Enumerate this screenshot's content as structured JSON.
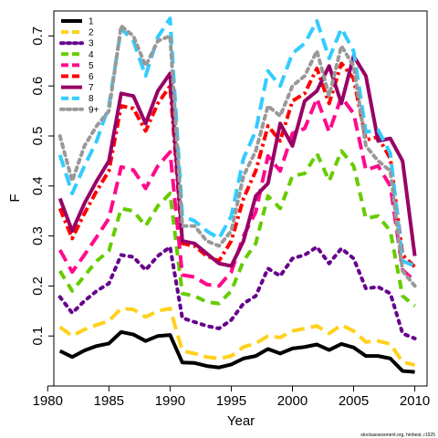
{
  "chart_data": {
    "type": "line",
    "xlabel": "Year",
    "ylabel": "F",
    "xlim": [
      1980.5,
      2011
    ],
    "ylim": [
      0.0,
      0.75
    ],
    "xticks": [
      1980,
      1985,
      1990,
      1995,
      2000,
      2005,
      2010
    ],
    "yticks": [
      0.1,
      0.2,
      0.3,
      0.4,
      0.5,
      0.6,
      0.7
    ],
    "legend_position": "top-left",
    "grid": false,
    "credit": "stockassessment.org, hmbest, r1525",
    "x": [
      1981,
      1982,
      1983,
      1984,
      1985,
      1986,
      1987,
      1988,
      1989,
      1990,
      1991,
      1992,
      1993,
      1994,
      1995,
      1996,
      1997,
      1998,
      1999,
      2000,
      2001,
      2002,
      2003,
      2004,
      2005,
      2006,
      2007,
      2008,
      2009,
      2010
    ],
    "series": [
      {
        "name": "1",
        "color": "#000000",
        "dash": "solid",
        "values": [
          0.07,
          0.058,
          0.071,
          0.08,
          0.085,
          0.108,
          0.103,
          0.09,
          0.1,
          0.102,
          0.047,
          0.046,
          0.04,
          0.037,
          0.043,
          0.055,
          0.06,
          0.074,
          0.065,
          0.075,
          0.078,
          0.083,
          0.072,
          0.084,
          0.077,
          0.06,
          0.06,
          0.055,
          0.03,
          0.028
        ]
      },
      {
        "name": "2",
        "color": "#FFD11C",
        "dash": "long",
        "values": [
          0.118,
          0.1,
          0.113,
          0.122,
          0.13,
          0.155,
          0.153,
          0.138,
          0.15,
          0.155,
          0.07,
          0.065,
          0.058,
          0.055,
          0.06,
          0.078,
          0.085,
          0.1,
          0.097,
          0.11,
          0.115,
          0.12,
          0.105,
          0.122,
          0.11,
          0.088,
          0.09,
          0.084,
          0.048,
          0.042
        ]
      },
      {
        "name": "3",
        "color": "#66008C",
        "dash": "dot",
        "values": [
          0.178,
          0.146,
          0.17,
          0.19,
          0.205,
          0.262,
          0.258,
          0.232,
          0.26,
          0.278,
          0.136,
          0.128,
          0.12,
          0.115,
          0.132,
          0.165,
          0.18,
          0.235,
          0.22,
          0.255,
          0.262,
          0.278,
          0.245,
          0.275,
          0.255,
          0.195,
          0.198,
          0.185,
          0.105,
          0.095
        ]
      },
      {
        "name": "4",
        "color": "#66CC00",
        "dash": "medium",
        "values": [
          0.23,
          0.19,
          0.22,
          0.25,
          0.27,
          0.355,
          0.35,
          0.32,
          0.36,
          0.385,
          0.185,
          0.18,
          0.168,
          0.165,
          0.19,
          0.25,
          0.285,
          0.38,
          0.355,
          0.42,
          0.425,
          0.465,
          0.41,
          0.47,
          0.44,
          0.335,
          0.34,
          0.31,
          0.18,
          0.16
        ]
      },
      {
        "name": "5",
        "color": "#FF0A8C",
        "dash": "long",
        "values": [
          0.272,
          0.228,
          0.262,
          0.298,
          0.335,
          0.438,
          0.432,
          0.395,
          0.44,
          0.468,
          0.222,
          0.218,
          0.203,
          0.2,
          0.228,
          0.3,
          0.348,
          0.46,
          0.43,
          0.505,
          0.515,
          0.575,
          0.508,
          0.578,
          0.545,
          0.432,
          0.44,
          0.4,
          0.232,
          0.21
        ]
      },
      {
        "name": "6",
        "color": "#FF0000",
        "dash": "dash-dot",
        "values": [
          0.355,
          0.295,
          0.345,
          0.39,
          0.43,
          0.56,
          0.555,
          0.51,
          0.565,
          0.6,
          0.285,
          0.28,
          0.26,
          0.25,
          0.29,
          0.375,
          0.43,
          0.52,
          0.49,
          0.57,
          0.585,
          0.635,
          0.565,
          0.645,
          0.615,
          0.492,
          0.498,
          0.455,
          0.262,
          0.238
        ]
      },
      {
        "name": "7",
        "color": "#990066",
        "dash": "solid",
        "values": [
          0.375,
          0.31,
          0.365,
          0.41,
          0.45,
          0.585,
          0.58,
          0.525,
          0.59,
          0.625,
          0.29,
          0.285,
          0.265,
          0.245,
          0.24,
          0.29,
          0.38,
          0.405,
          0.525,
          0.48,
          0.57,
          0.59,
          0.64,
          0.565,
          0.66,
          0.62,
          0.49,
          0.495,
          0.45,
          0.26
        ]
      },
      {
        "name": "8",
        "color": "#33CCFF",
        "dash": "long",
        "values": [
          0.462,
          0.385,
          0.44,
          0.49,
          0.56,
          0.715,
          0.69,
          0.62,
          0.698,
          0.735,
          0.34,
          0.33,
          0.31,
          0.295,
          0.34,
          0.455,
          0.51,
          0.63,
          0.6,
          0.665,
          0.685,
          0.73,
          0.655,
          0.715,
          0.67,
          0.508,
          0.512,
          0.465,
          0.25,
          0.24
        ]
      },
      {
        "name": "9+",
        "color": "#999999",
        "dash": "dot-heavy",
        "values": [
          0.5,
          0.41,
          0.48,
          0.52,
          0.55,
          0.72,
          0.7,
          0.64,
          0.69,
          0.7,
          0.32,
          0.32,
          0.29,
          0.28,
          0.31,
          0.42,
          0.47,
          0.56,
          0.54,
          0.6,
          0.62,
          0.67,
          0.58,
          0.68,
          0.64,
          0.48,
          0.45,
          0.43,
          0.23,
          0.2
        ]
      }
    ]
  }
}
